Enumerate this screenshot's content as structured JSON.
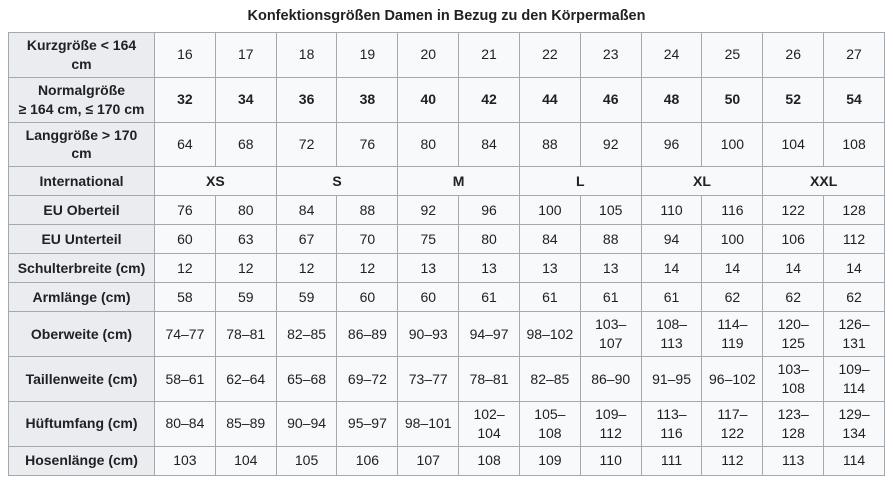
{
  "chart_data": {
    "type": "table",
    "title": "Konfektionsgrößen Damen in Bezug zu den Körpermaßen",
    "columns_per_row": 12,
    "rows": [
      {
        "label": "Kurzgröße < 164 cm",
        "bold": false,
        "span": 1,
        "values": [
          "16",
          "17",
          "18",
          "19",
          "20",
          "21",
          "22",
          "23",
          "24",
          "25",
          "26",
          "27"
        ]
      },
      {
        "label": "Normalgröße\n≥ 164 cm, ≤ 170 cm",
        "bold": true,
        "span": 1,
        "values": [
          "32",
          "34",
          "36",
          "38",
          "40",
          "42",
          "44",
          "46",
          "48",
          "50",
          "52",
          "54"
        ]
      },
      {
        "label": "Langgröße > 170 cm",
        "bold": false,
        "span": 1,
        "values": [
          "64",
          "68",
          "72",
          "76",
          "80",
          "84",
          "88",
          "92",
          "96",
          "100",
          "104",
          "108"
        ]
      },
      {
        "label": "International",
        "bold": true,
        "span": 2,
        "values": [
          "XS",
          "S",
          "M",
          "L",
          "XL",
          "XXL"
        ]
      },
      {
        "label": "EU Oberteil",
        "bold": false,
        "span": 1,
        "values": [
          "76",
          "80",
          "84",
          "88",
          "92",
          "96",
          "100",
          "105",
          "110",
          "116",
          "122",
          "128"
        ]
      },
      {
        "label": "EU Unterteil",
        "bold": false,
        "span": 1,
        "values": [
          "60",
          "63",
          "67",
          "70",
          "75",
          "80",
          "84",
          "88",
          "94",
          "100",
          "106",
          "112"
        ]
      },
      {
        "label": "Schulterbreite (cm)",
        "bold": false,
        "span": 1,
        "values": [
          "12",
          "12",
          "12",
          "12",
          "13",
          "13",
          "13",
          "13",
          "14",
          "14",
          "14",
          "14"
        ]
      },
      {
        "label": "Armlänge (cm)",
        "bold": false,
        "span": 1,
        "values": [
          "58",
          "59",
          "59",
          "60",
          "60",
          "61",
          "61",
          "61",
          "61",
          "62",
          "62",
          "62"
        ]
      },
      {
        "label": "Oberweite (cm)",
        "bold": false,
        "span": 1,
        "values": [
          "74–77",
          "78–81",
          "82–85",
          "86–89",
          "90–93",
          "94–97",
          "98–102",
          "103–107",
          "108–113",
          "114–119",
          "120–125",
          "126–131"
        ]
      },
      {
        "label": "Taillenweite (cm)",
        "bold": false,
        "span": 1,
        "values": [
          "58–61",
          "62–64",
          "65–68",
          "69–72",
          "73–77",
          "78–81",
          "82–85",
          "86–90",
          "91–95",
          "96–102",
          "103–108",
          "109–114"
        ]
      },
      {
        "label": "Hüftumfang (cm)",
        "bold": false,
        "span": 1,
        "values": [
          "80–84",
          "85–89",
          "90–94",
          "95–97",
          "98–101",
          "102–104",
          "105–108",
          "109–112",
          "113–116",
          "117–122",
          "123–128",
          "129–134"
        ]
      },
      {
        "label": "Hosenlänge (cm)",
        "bold": false,
        "span": 1,
        "values": [
          "103",
          "104",
          "105",
          "106",
          "107",
          "108",
          "109",
          "110",
          "111",
          "112",
          "113",
          "114"
        ]
      }
    ]
  },
  "colors": {
    "border": "#a2a9b1",
    "label_bg": "#eaecf0",
    "cell_bg": "#f8f9fa",
    "text": "#202122",
    "page_bg": "#ffffff"
  }
}
